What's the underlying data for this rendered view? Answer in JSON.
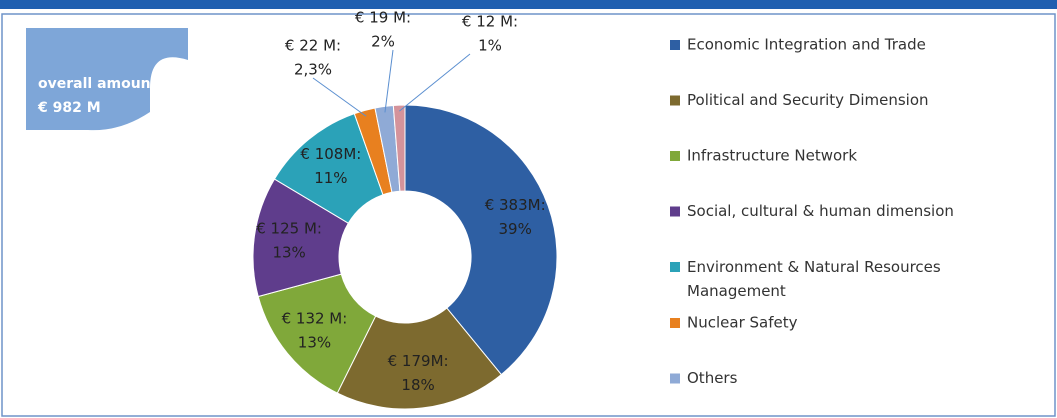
{
  "chart_data": {
    "type": "donut",
    "annotation": [
      "overall amount:",
      "€ 982 M"
    ],
    "categories": [
      "Economic Integration and Trade",
      "Political and Security Dimension",
      "Infrastructure Network",
      "Social, cultural & human dimension",
      "Environment & Natural Resources Management",
      "Nuclear Safety",
      "Others",
      null
    ],
    "values": [
      383,
      179,
      132,
      125,
      108,
      22,
      19,
      12
    ],
    "value_labels": [
      "€ 383M:",
      "€ 179M:",
      "€ 132 M:",
      "€ 125 M:",
      "€ 108M:",
      "€ 22 M:",
      "€ 19 M:",
      "€ 12 M:"
    ],
    "percents": [
      39,
      18,
      13,
      13,
      11,
      2.3,
      2,
      1
    ],
    "percent_labels": [
      "39%",
      "18%",
      "13%",
      "13%",
      "11%",
      "2,3%",
      "2%",
      "1%"
    ],
    "colors": [
      "#2e5fa3",
      "#7d6a2f",
      "#80a83a",
      "#5f3d8c",
      "#2ba2b8",
      "#e8801f",
      "#8faad6",
      "#d4939b"
    ],
    "legend": "right"
  }
}
